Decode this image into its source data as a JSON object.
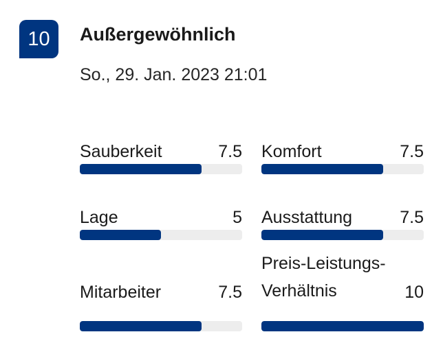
{
  "review": {
    "score": "10",
    "title": "Außergewöhnlich",
    "date": "So., 29. Jan. 2023 21:01"
  },
  "categories": [
    {
      "label": "Sauberkeit",
      "value": "7.5",
      "fraction": 0.75
    },
    {
      "label": "Komfort",
      "value": "7.5",
      "fraction": 0.75
    },
    {
      "label": "Lage",
      "value": "5",
      "fraction": 0.5
    },
    {
      "label": "Ausstattung",
      "value": "7.5",
      "fraction": 0.75
    },
    {
      "label": "Mitarbeiter",
      "value": "7.5",
      "fraction": 0.75
    },
    {
      "label": "Preis-Leistungs-Verhältnis",
      "value": "10",
      "fraction": 1.0
    }
  ],
  "colors": {
    "accent": "#003580",
    "track": "#ededed"
  }
}
